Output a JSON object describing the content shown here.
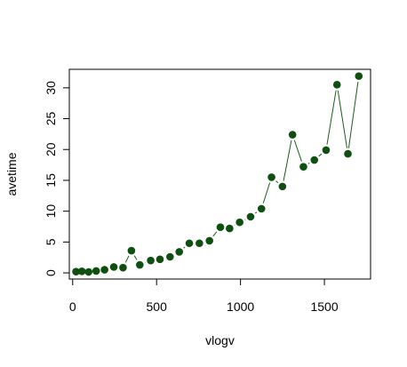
{
  "chart_data": {
    "type": "line",
    "title": "",
    "xlabel": "vlogv",
    "ylabel": "avetime",
    "xlim": [
      -20,
      1775
    ],
    "ylim": [
      -1.0,
      33.0
    ],
    "x_ticks": [
      0,
      500,
      1000,
      1500
    ],
    "x_tick_labels": [
      "0",
      "500",
      "1000",
      "1500"
    ],
    "y_ticks": [
      0,
      5,
      10,
      15,
      20,
      25,
      30
    ],
    "y_tick_labels": [
      "0",
      "5",
      "10",
      "15",
      "20",
      "25",
      "30"
    ],
    "grid": false,
    "legend": "none",
    "line_color": "#1a5e1a",
    "point_color": "#0f4f0f",
    "series": [
      {
        "x": [
          20,
          55,
          95,
          140,
          190,
          245,
          300,
          350,
          400,
          465,
          520,
          580,
          635,
          695,
          755,
          815,
          880,
          935,
          995,
          1060,
          1125,
          1185,
          1250,
          1310,
          1375,
          1440,
          1510,
          1575,
          1640,
          1705
        ],
        "y": [
          0.2,
          0.25,
          0.15,
          0.3,
          0.5,
          0.95,
          0.85,
          3.6,
          1.3,
          2.0,
          2.2,
          2.6,
          3.4,
          4.8,
          4.8,
          5.2,
          7.4,
          7.2,
          8.2,
          9.1,
          10.4,
          15.5,
          14.0,
          22.4,
          17.2,
          18.3,
          19.9,
          30.5,
          19.3,
          31.9
        ]
      }
    ]
  }
}
